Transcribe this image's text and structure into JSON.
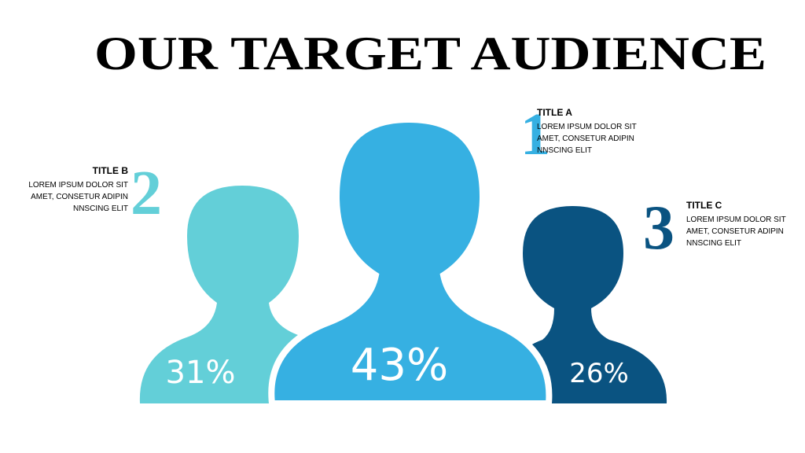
{
  "title": "OUR TARGET AUDIENCE",
  "items": [
    {
      "number": "1",
      "title": "TITLE A",
      "text": [
        "LOREM IPSUM DOLOR SIT",
        "AMET, CONSETUR ADIPIN",
        "NNSCING ELIT"
      ],
      "percent": "43%"
    },
    {
      "number": "2",
      "title": "TITLE B",
      "text": [
        "LOREM IPSUM DOLOR SIT",
        "AMET, CONSETUR ADIPIN",
        "NNSCING ELIT"
      ],
      "percent": "31%"
    },
    {
      "number": "3",
      "title": "TITLE C",
      "text": [
        "LOREM IPSUM DOLOR SIT",
        "AMET, CONSETUR ADIPIN",
        "NNSCING ELIT"
      ],
      "percent": "26%"
    }
  ]
}
